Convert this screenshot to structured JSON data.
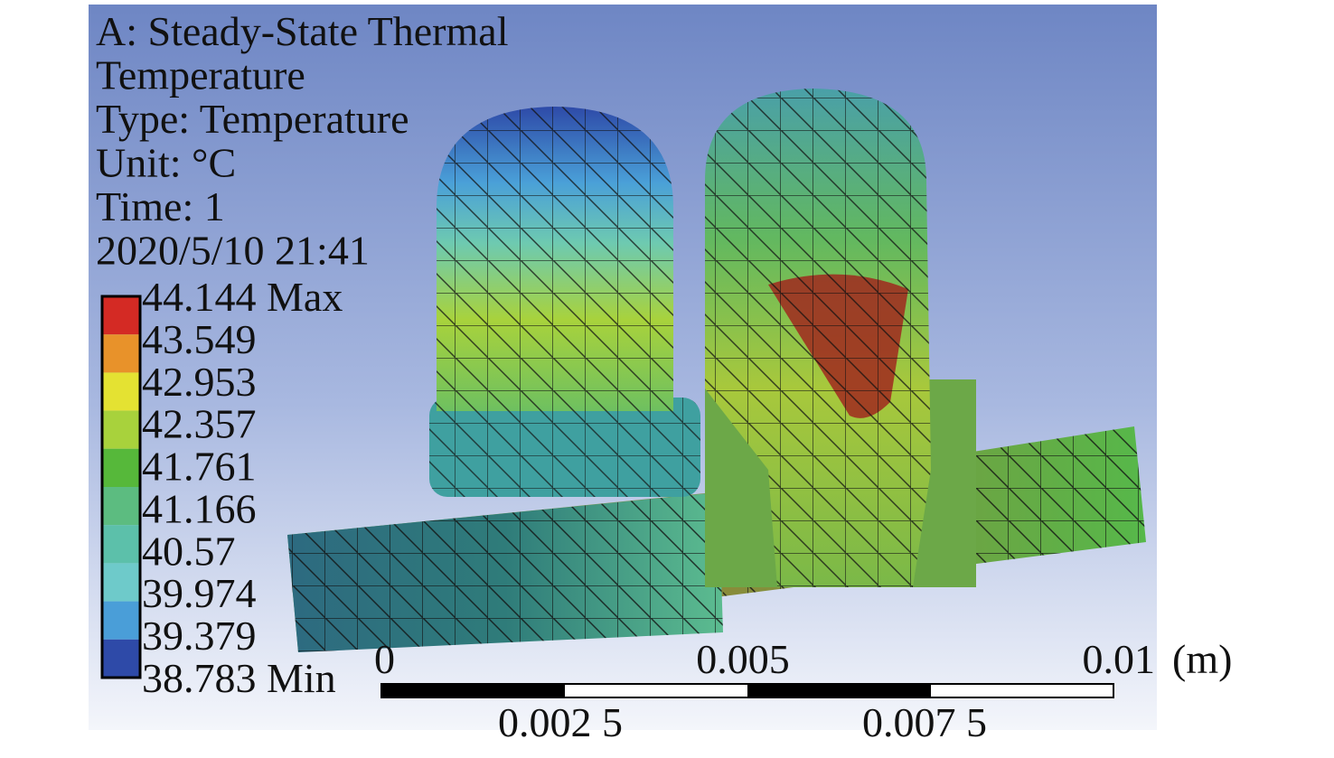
{
  "header": {
    "lines": [
      "A: Steady-State Thermal",
      "Temperature",
      "Type: Temperature",
      "Unit: °C",
      "Time: 1",
      "2020/5/10 21:41"
    ]
  },
  "legend": {
    "labels": [
      "44.144 Max",
      "43.549",
      "42.953",
      "42.357",
      "41.761",
      "41.166",
      "40.57",
      "39.974",
      "39.379",
      "38.783 Min"
    ],
    "colors": [
      "#d42a24",
      "#e8922a",
      "#e4e232",
      "#a8d23c",
      "#56b83a",
      "#5cbc80",
      "#5cc0aa",
      "#6ecaca",
      "#4a9ed8",
      "#2e4aa8"
    ]
  },
  "scale_bar": {
    "top_labels": [
      "0",
      "0.005",
      "0.01"
    ],
    "unit": "(m)",
    "bottom_labels": [
      "0.002 5",
      "0.007 5"
    ]
  }
}
